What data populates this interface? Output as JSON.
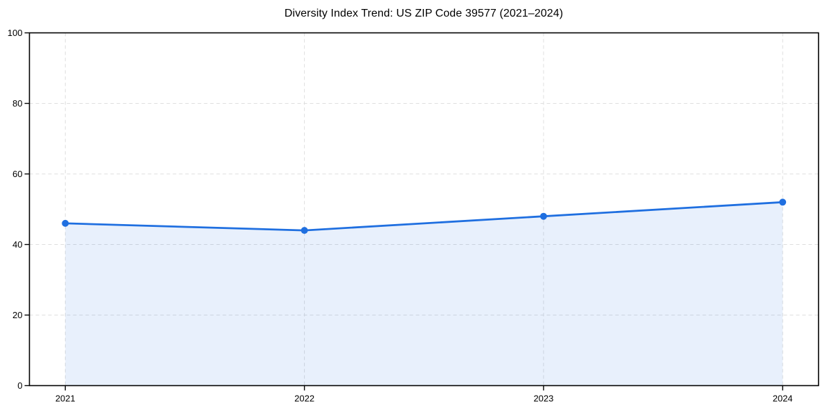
{
  "chart_data": {
    "type": "line",
    "title": "Diversity Index Trend: US ZIP Code 39577 (2021–2024)",
    "categories": [
      "2021",
      "2022",
      "2023",
      "2024"
    ],
    "values": [
      46,
      44,
      48,
      52
    ],
    "series_label": "Diversity Index",
    "xlabel": "",
    "ylabel": "",
    "ylim": [
      0,
      100
    ],
    "yticks": [
      0,
      20,
      40,
      60,
      80,
      100
    ],
    "grid": true,
    "grid_style": "dashed",
    "legend_position": "none",
    "marker_shape": "circle",
    "area_fill": true,
    "colors": {
      "line": "#1f6fe0",
      "marker": "#1f6fe0",
      "fill": "rgba(31,111,224,0.10)",
      "grid": "#dedede",
      "axis": "#000000",
      "background": "#ffffff",
      "title_text": "#000000",
      "tick_text": "#000000"
    }
  }
}
